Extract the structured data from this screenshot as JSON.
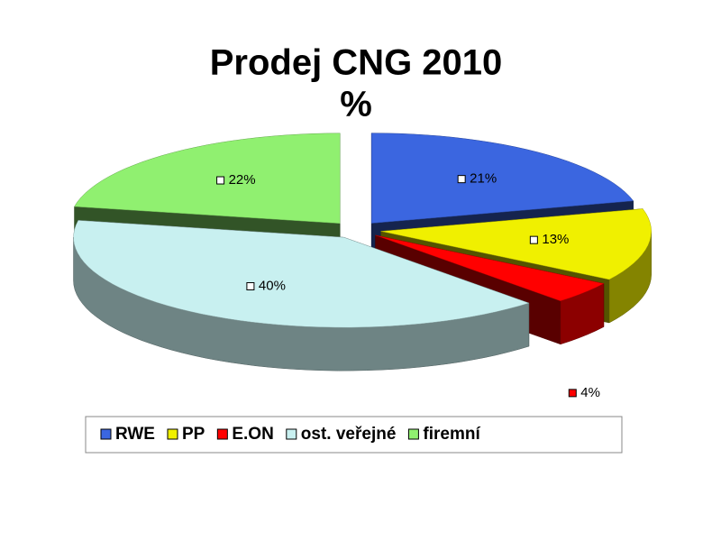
{
  "chart_data": {
    "type": "pie3d",
    "title": "Prodej CNG 2010",
    "subtitle": "%",
    "categories": [
      "RWE",
      "PP",
      "E.ON",
      "ost. veřejné",
      "firemní"
    ],
    "values": [
      21,
      13,
      4,
      40,
      22
    ],
    "value_labels": [
      "21%",
      "13%",
      "4%",
      "40%",
      "22%"
    ],
    "colors": [
      "#3b66e0",
      "#f0f000",
      "#ff0000",
      "#c8f0f0",
      "#90f070"
    ],
    "legend": "bottom"
  }
}
